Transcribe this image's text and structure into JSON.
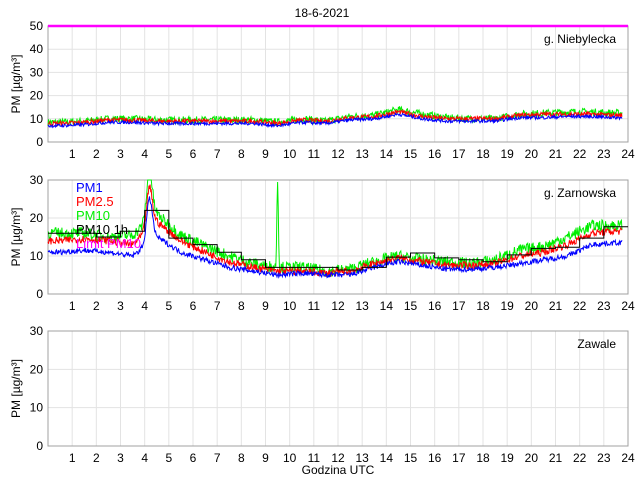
{
  "chart_data": {
    "type": "line",
    "title": "18-6-2021",
    "xlabel": "Godzina UTC",
    "ylabel": "PM [µg/m³]",
    "xlim": [
      0,
      24
    ],
    "xticks": [
      1,
      2,
      3,
      4,
      5,
      6,
      7,
      8,
      9,
      10,
      11,
      12,
      13,
      14,
      15,
      16,
      17,
      18,
      19,
      20,
      21,
      22,
      23,
      24
    ],
    "grid": true,
    "legend": {
      "placement": "top-left of second panel",
      "entries": [
        {
          "label": "PM1",
          "color": "#0000ff"
        },
        {
          "label": "PM2.5",
          "color": "#ff0000"
        },
        {
          "label": "PM10",
          "color": "#00ee00"
        },
        {
          "label": "PM10 1h",
          "color": "#000000"
        },
        {
          "label": "Limit PM10",
          "color": "#ff00ff"
        }
      ]
    },
    "colors": {
      "pm1": "#0000ff",
      "pm25": "#ff0000",
      "pm10": "#00ee00",
      "pm10_1h": "#000000",
      "limit": "#ff00ff"
    },
    "panels": [
      {
        "name": "g. Niebylecka",
        "ylim": [
          0,
          50
        ],
        "yticks": [
          0,
          10,
          20,
          30,
          40,
          50
        ],
        "limit_pm10": 50,
        "hourly_pm1": [
          7,
          7.5,
          8.5,
          8.5,
          8,
          8,
          8,
          8,
          8,
          7,
          8.5,
          8,
          9.5,
          10,
          12,
          10,
          9,
          9,
          9,
          10.5,
          10.5,
          11,
          11,
          10.5
        ],
        "hourly_pm25": [
          8,
          8.5,
          9.5,
          9.5,
          9,
          9,
          9,
          9,
          9,
          8,
          9.5,
          9,
          10.5,
          11,
          13,
          11,
          10,
          10,
          10,
          11.5,
          12,
          12,
          12,
          11.5
        ],
        "hourly_pm10": [
          8.5,
          9,
          10,
          10,
          9.5,
          9.5,
          9.5,
          9.5,
          9.5,
          8.5,
          10,
          9,
          11,
          11.5,
          14,
          12,
          10.5,
          10,
          10,
          12,
          12.5,
          13,
          13,
          12.5
        ],
        "hourly_pm10_1h": null,
        "data_end_hour": 23.75
      },
      {
        "name": "g. Zarnowska",
        "ylim": [
          0,
          30
        ],
        "yticks": [
          0,
          10,
          20,
          30
        ],
        "hourly_pm1": [
          11,
          11.5,
          11,
          10,
          15,
          11,
          9,
          7,
          6,
          5,
          5.5,
          5,
          5,
          7,
          8.5,
          7.5,
          6.5,
          6.5,
          7,
          8,
          9,
          10,
          13,
          13.5
        ],
        "hourly_pm25": [
          14,
          14.5,
          14,
          13,
          19,
          14,
          11,
          8.5,
          7,
          6,
          6,
          5.5,
          6,
          8,
          9.5,
          8.5,
          7.5,
          7.5,
          8,
          10,
          11,
          13,
          16,
          16.5
        ],
        "hourly_pm10": [
          16,
          16,
          15,
          15.5,
          21,
          15.5,
          12.5,
          10,
          8,
          7,
          7,
          6,
          6.5,
          8.5,
          10,
          9,
          8.5,
          8,
          9,
          11.5,
          12.5,
          15,
          18,
          18
        ],
        "hourly_pm10_1h": [
          16,
          16,
          15,
          16.5,
          22,
          14.7,
          13,
          11,
          9,
          7,
          7,
          7,
          6.3,
          7,
          9.7,
          10.8,
          9.5,
          9,
          8.5,
          10.3,
          12,
          12.3,
          14.7,
          17.7
        ],
        "peaks": [
          {
            "hour": 4.2,
            "pm1": 25,
            "pm25": 28,
            "pm10": 32
          },
          {
            "hour": 9.5,
            "pm10": 31
          }
        ],
        "data_end_hour": 23.75
      },
      {
        "name": "Zawale",
        "ylim": [
          0,
          30
        ],
        "yticks": [
          0,
          10,
          20,
          30
        ],
        "hourly_pm1": null,
        "hourly_pm25": null,
        "hourly_pm10": null,
        "hourly_pm10_1h": null
      }
    ]
  }
}
